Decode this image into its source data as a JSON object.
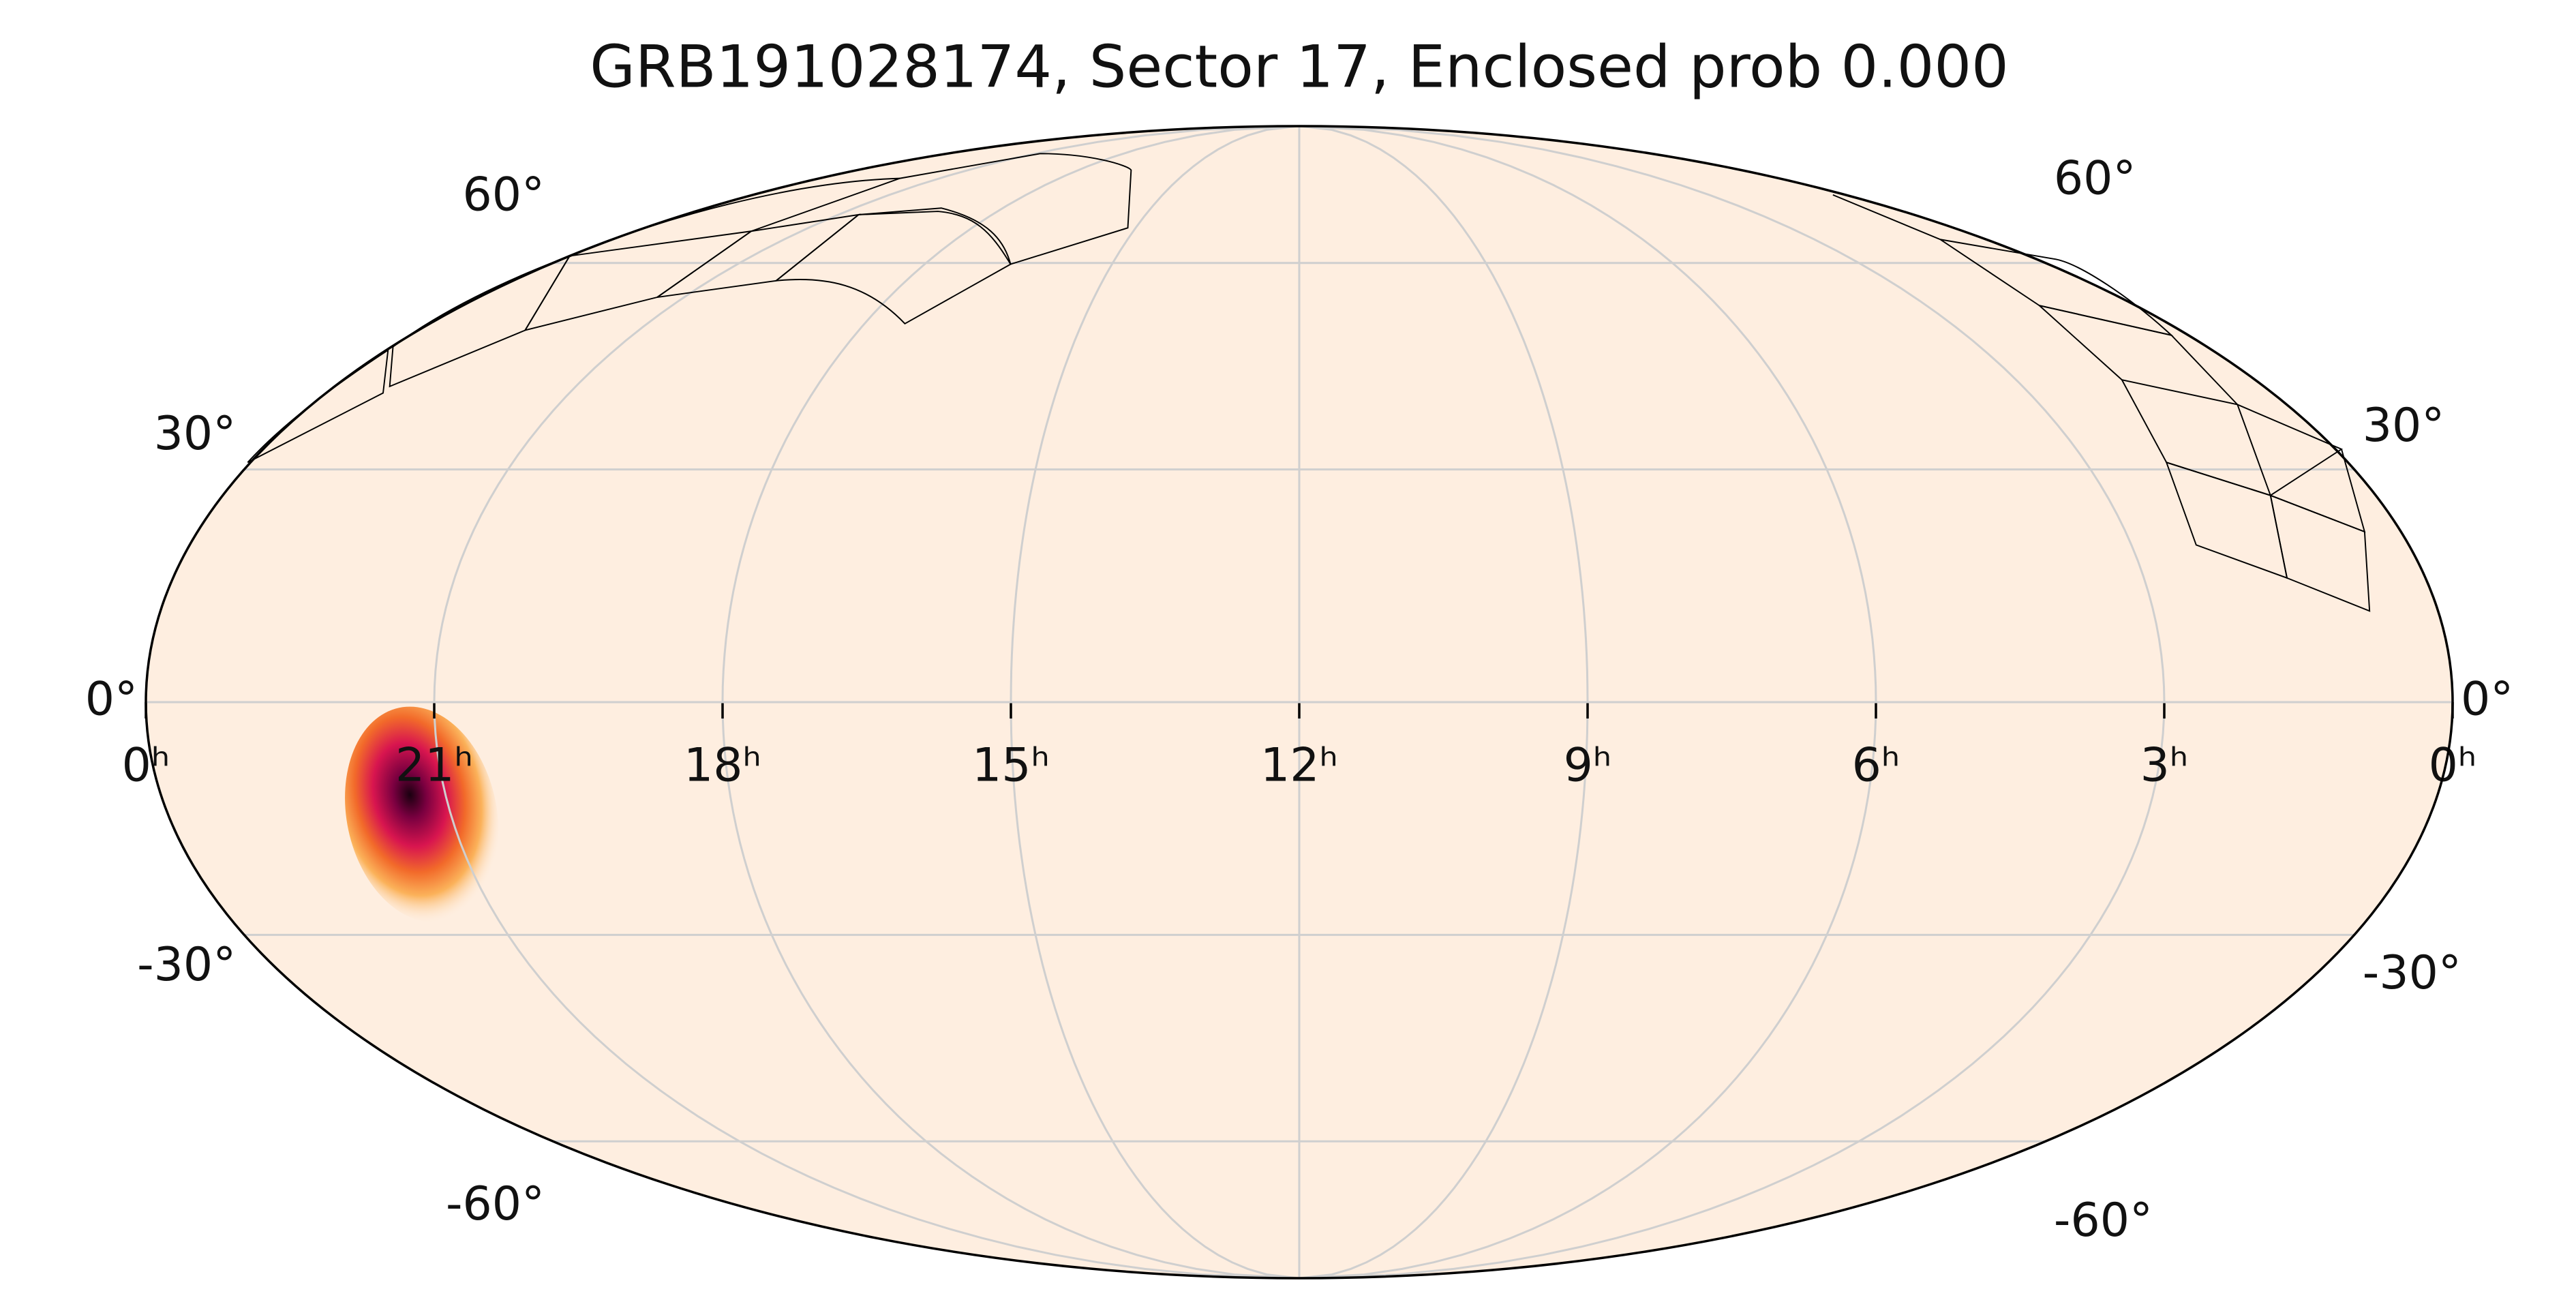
{
  "chart_data": {
    "type": "skymap",
    "title": "GRB191028174, Sector 17, Enclosed prob 0.000",
    "xlim": [
      24,
      0
    ],
    "xticks": [
      {
        "value": 24,
        "label": "0ʰ"
      },
      {
        "value": 21,
        "label": "21ʰ"
      },
      {
        "value": 18,
        "label": "18ʰ"
      },
      {
        "value": 15,
        "label": "15ʰ"
      },
      {
        "value": 12,
        "label": "12ʰ"
      },
      {
        "value": 9,
        "label": "9ʰ"
      },
      {
        "value": 6,
        "label": "6ʰ"
      },
      {
        "value": 3,
        "label": "3ʰ"
      },
      {
        "value": 0,
        "label": "0ʰ"
      }
    ],
    "ylim": [
      -90,
      90
    ],
    "yticks": [
      {
        "value": 60,
        "label": "60°"
      },
      {
        "value": 30,
        "label": "30°"
      },
      {
        "value": 0,
        "label": "0°"
      },
      {
        "value": -30,
        "label": "-30°"
      },
      {
        "value": -60,
        "label": "-60°"
      }
    ],
    "grid": true,
    "background": "#feeee0",
    "source": {
      "ra": 21.3,
      "dec": -13
    }
  }
}
